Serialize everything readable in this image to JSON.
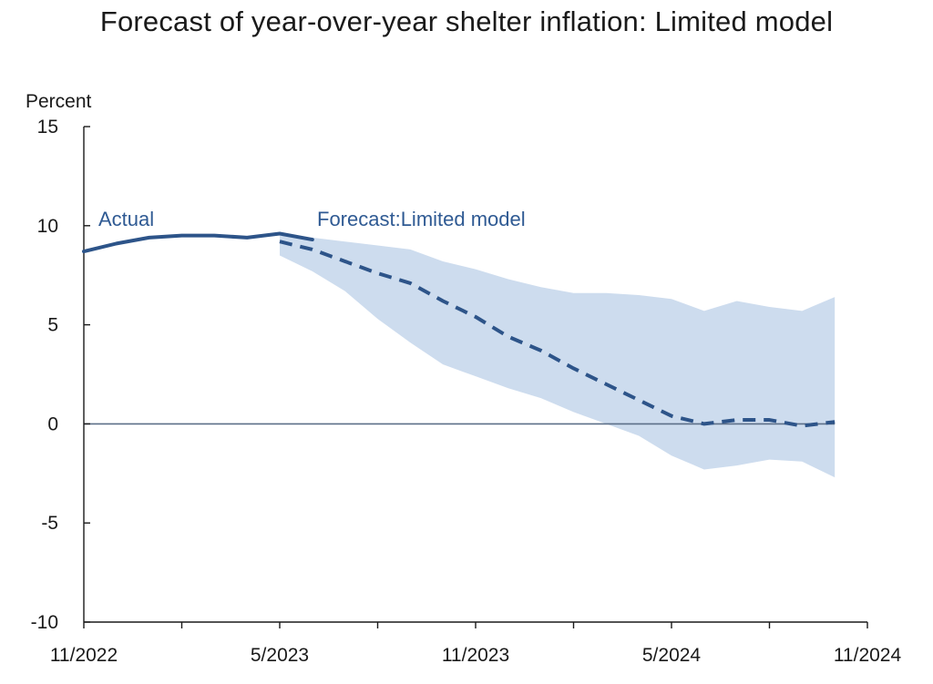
{
  "title": "Forecast of year-over-year shelter inflation: Limited model",
  "chart_data": {
    "type": "line",
    "title": "Forecast of year-over-year shelter inflation: Limited model",
    "ylabel": "Percent",
    "xlabel": "",
    "ylim": [
      -10,
      15
    ],
    "yticks": [
      15,
      10,
      5,
      0,
      -5,
      -10
    ],
    "x_tick_labels": [
      "11/2022",
      "5/2023",
      "11/2023",
      "5/2024",
      "11/2024"
    ],
    "zero_line": true,
    "grid": false,
    "series": [
      {
        "name": "Actual",
        "style": "solid",
        "x": [
          "11/2022",
          "12/2022",
          "1/2023",
          "2/2023",
          "3/2023",
          "4/2023",
          "5/2023",
          "6/2023"
        ],
        "values": [
          8.7,
          9.1,
          9.4,
          9.5,
          9.5,
          9.4,
          9.6,
          9.3
        ]
      },
      {
        "name": "Forecast:Limited model",
        "style": "dashed",
        "x": [
          "5/2023",
          "6/2023",
          "7/2023",
          "8/2023",
          "9/2023",
          "10/2023",
          "11/2023",
          "12/2023",
          "1/2024",
          "2/2024",
          "3/2024",
          "4/2024",
          "5/2024",
          "6/2024",
          "7/2024",
          "8/2024",
          "9/2024",
          "10/2024"
        ],
        "values": [
          9.2,
          8.8,
          8.2,
          7.6,
          7.1,
          6.2,
          5.4,
          4.4,
          3.7,
          2.8,
          2.0,
          1.2,
          0.4,
          0.0,
          0.2,
          0.2,
          -0.1,
          0.1
        ]
      }
    ],
    "band": {
      "x": [
        "5/2023",
        "6/2023",
        "7/2023",
        "8/2023",
        "9/2023",
        "10/2023",
        "11/2023",
        "12/2023",
        "1/2024",
        "2/2024",
        "3/2024",
        "4/2024",
        "5/2024",
        "6/2024",
        "7/2024",
        "8/2024",
        "9/2024",
        "10/2024"
      ],
      "upper": [
        9.5,
        9.4,
        9.2,
        9.0,
        8.8,
        8.2,
        7.8,
        7.3,
        6.9,
        6.6,
        6.6,
        6.5,
        6.3,
        5.7,
        6.2,
        5.9,
        5.7,
        6.4
      ],
      "lower": [
        8.5,
        7.7,
        6.7,
        5.3,
        4.1,
        3.0,
        2.4,
        1.8,
        1.3,
        0.6,
        0.0,
        -0.6,
        -1.6,
        -2.3,
        -2.1,
        -1.8,
        -1.9,
        -2.7
      ]
    },
    "colors": {
      "line": "#2d5489",
      "band": "#cddcee",
      "axis": "#1a1a1a",
      "zero_line": "#5c6f88"
    }
  }
}
